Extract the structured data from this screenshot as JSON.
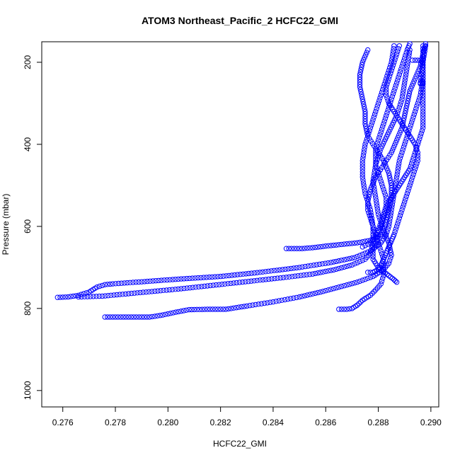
{
  "chart_data": {
    "type": "scatter",
    "title": "ATOM3 Northeast_Pacific_2 HCFC22_GMI",
    "xlabel": "HCFC22_GMI",
    "ylabel": "Pressure (mbar)",
    "xlim": [
      0.2752,
      0.2903
    ],
    "ylim": [
      1040,
      150
    ],
    "y_reversed": true,
    "x_ticks": [
      "0.276",
      "0.278",
      "0.280",
      "0.282",
      "0.284",
      "0.286",
      "0.288",
      "0.290"
    ],
    "y_ticks": [
      "200",
      "400",
      "600",
      "800",
      "1000"
    ],
    "x_tick_values": [
      0.276,
      0.278,
      0.28,
      0.282,
      0.284,
      0.286,
      0.288,
      0.29
    ],
    "y_tick_values": [
      200,
      400,
      600,
      800,
      1000
    ],
    "grid": false,
    "marker": "open-circle",
    "color": "#0000ff",
    "series": [
      {
        "values": [
          [
            0.2758,
            773
          ],
          [
            0.2762,
            772
          ],
          [
            0.2766,
            768
          ],
          [
            0.277,
            760
          ],
          [
            0.2773,
            748
          ],
          [
            0.2776,
            742
          ],
          [
            0.2779,
            740
          ],
          [
            0.279,
            735
          ],
          [
            0.2805,
            728
          ],
          [
            0.282,
            722
          ],
          [
            0.2835,
            712
          ],
          [
            0.285,
            700
          ],
          [
            0.2862,
            688
          ],
          [
            0.2871,
            676
          ],
          [
            0.2877,
            660
          ],
          [
            0.2881,
            640
          ],
          [
            0.2883,
            620
          ],
          [
            0.2884,
            600
          ],
          [
            0.2885,
            560
          ],
          [
            0.2886,
            520
          ],
          [
            0.2887,
            480
          ],
          [
            0.2888,
            440
          ],
          [
            0.289,
            400
          ],
          [
            0.2892,
            360
          ],
          [
            0.2894,
            320
          ],
          [
            0.2896,
            280
          ],
          [
            0.2897,
            240
          ],
          [
            0.2897,
            200
          ],
          [
            0.2898,
            160
          ]
        ]
      },
      {
        "values": [
          [
            0.2776,
            821
          ],
          [
            0.278,
            821
          ],
          [
            0.2785,
            821
          ],
          [
            0.279,
            821
          ],
          [
            0.2793,
            821
          ],
          [
            0.2798,
            816
          ],
          [
            0.2803,
            809
          ],
          [
            0.2808,
            803
          ],
          [
            0.2815,
            802
          ],
          [
            0.2822,
            802
          ],
          [
            0.283,
            794
          ],
          [
            0.284,
            784
          ],
          [
            0.285,
            772
          ],
          [
            0.2858,
            760
          ],
          [
            0.2865,
            748
          ],
          [
            0.2872,
            736
          ],
          [
            0.2878,
            722
          ],
          [
            0.2882,
            705
          ],
          [
            0.2884,
            690
          ],
          [
            0.2885,
            670
          ],
          [
            0.2884,
            640
          ],
          [
            0.2882,
            610
          ],
          [
            0.288,
            570
          ],
          [
            0.2879,
            530
          ],
          [
            0.2878,
            490
          ],
          [
            0.2879,
            450
          ],
          [
            0.2881,
            410
          ],
          [
            0.2884,
            370
          ],
          [
            0.2887,
            330
          ],
          [
            0.2889,
            290
          ],
          [
            0.289,
            250
          ],
          [
            0.2891,
            210
          ],
          [
            0.2892,
            170
          ]
        ]
      },
      {
        "values": [
          [
            0.2766,
            772
          ],
          [
            0.2775,
            770
          ],
          [
            0.2785,
            764
          ],
          [
            0.2795,
            758
          ],
          [
            0.2805,
            752
          ],
          [
            0.2815,
            745
          ],
          [
            0.2825,
            738
          ],
          [
            0.2835,
            731
          ],
          [
            0.2845,
            724
          ],
          [
            0.2855,
            716
          ],
          [
            0.2863,
            706
          ],
          [
            0.287,
            694
          ],
          [
            0.2875,
            680
          ],
          [
            0.2877,
            665
          ],
          [
            0.2878,
            640
          ],
          [
            0.2878,
            600
          ],
          [
            0.2877,
            560
          ],
          [
            0.2875,
            520
          ],
          [
            0.2874,
            480
          ],
          [
            0.2874,
            440
          ],
          [
            0.2875,
            400
          ],
          [
            0.2877,
            360
          ],
          [
            0.2879,
            320
          ],
          [
            0.2881,
            280
          ],
          [
            0.2883,
            240
          ],
          [
            0.2885,
            200
          ],
          [
            0.2886,
            160
          ]
        ]
      },
      {
        "values": [
          [
            0.2845,
            654
          ],
          [
            0.2848,
            654
          ],
          [
            0.2851,
            654
          ],
          [
            0.2855,
            652
          ],
          [
            0.286,
            648
          ],
          [
            0.2866,
            644
          ],
          [
            0.2872,
            640
          ],
          [
            0.2877,
            634
          ],
          [
            0.288,
            625
          ],
          [
            0.2882,
            610
          ],
          [
            0.2883,
            590
          ],
          [
            0.2884,
            560
          ],
          [
            0.2885,
            530
          ],
          [
            0.2885,
            500
          ],
          [
            0.2884,
            470
          ],
          [
            0.2882,
            440
          ],
          [
            0.2879,
            410
          ],
          [
            0.2876,
            380
          ],
          [
            0.2875,
            350
          ],
          [
            0.2875,
            320
          ],
          [
            0.2874,
            290
          ],
          [
            0.2873,
            260
          ],
          [
            0.2873,
            230
          ],
          [
            0.2874,
            200
          ],
          [
            0.2876,
            170
          ]
        ]
      },
      {
        "values": [
          [
            0.2865,
            802
          ],
          [
            0.2868,
            802
          ],
          [
            0.287,
            800
          ],
          [
            0.2872,
            792
          ],
          [
            0.2874,
            780
          ],
          [
            0.2877,
            768
          ],
          [
            0.2879,
            755
          ],
          [
            0.2881,
            740
          ],
          [
            0.2882,
            720
          ],
          [
            0.2882,
            700
          ],
          [
            0.2882,
            680
          ],
          [
            0.2881,
            660
          ],
          [
            0.288,
            640
          ],
          [
            0.2879,
            620
          ],
          [
            0.2878,
            600
          ],
          [
            0.2877,
            580
          ],
          [
            0.2876,
            560
          ],
          [
            0.2876,
            540
          ],
          [
            0.2877,
            510
          ],
          [
            0.2879,
            480
          ],
          [
            0.2882,
            450
          ],
          [
            0.2885,
            420
          ],
          [
            0.2887,
            390
          ],
          [
            0.2889,
            360
          ],
          [
            0.289,
            330
          ],
          [
            0.2891,
            300
          ],
          [
            0.2892,
            270
          ],
          [
            0.2894,
            240
          ],
          [
            0.2896,
            210
          ],
          [
            0.2897,
            180
          ],
          [
            0.2898,
            155
          ]
        ]
      },
      {
        "values": [
          [
            0.2876,
            712
          ],
          [
            0.2878,
            712
          ],
          [
            0.288,
            705
          ],
          [
            0.2881,
            695
          ],
          [
            0.2882,
            680
          ],
          [
            0.2883,
            665
          ],
          [
            0.2884,
            650
          ],
          [
            0.2885,
            635
          ],
          [
            0.2886,
            620
          ],
          [
            0.2887,
            600
          ],
          [
            0.2888,
            580
          ],
          [
            0.2889,
            560
          ],
          [
            0.289,
            540
          ],
          [
            0.2891,
            520
          ],
          [
            0.2892,
            500
          ],
          [
            0.2893,
            480
          ],
          [
            0.2894,
            460
          ],
          [
            0.2895,
            440
          ],
          [
            0.2895,
            420
          ],
          [
            0.2894,
            400
          ],
          [
            0.2892,
            380
          ],
          [
            0.289,
            360
          ],
          [
            0.2888,
            340
          ],
          [
            0.2886,
            320
          ],
          [
            0.2884,
            300
          ],
          [
            0.2883,
            280
          ],
          [
            0.2883,
            260
          ],
          [
            0.2884,
            240
          ],
          [
            0.2885,
            220
          ],
          [
            0.2886,
            200
          ],
          [
            0.2887,
            180
          ],
          [
            0.2888,
            160
          ]
        ]
      },
      {
        "values": [
          [
            0.2887,
            736
          ],
          [
            0.2886,
            730
          ],
          [
            0.2884,
            720
          ],
          [
            0.2882,
            710
          ],
          [
            0.288,
            700
          ],
          [
            0.2879,
            690
          ],
          [
            0.2878,
            680
          ],
          [
            0.2878,
            660
          ],
          [
            0.2879,
            640
          ],
          [
            0.288,
            620
          ],
          [
            0.2881,
            600
          ],
          [
            0.2882,
            580
          ],
          [
            0.2883,
            560
          ],
          [
            0.2884,
            540
          ],
          [
            0.2886,
            520
          ],
          [
            0.2888,
            500
          ],
          [
            0.289,
            480
          ],
          [
            0.2892,
            460
          ],
          [
            0.2893,
            440
          ],
          [
            0.2894,
            420
          ],
          [
            0.2895,
            400
          ],
          [
            0.2896,
            380
          ],
          [
            0.2897,
            360
          ],
          [
            0.2897,
            340
          ],
          [
            0.2897,
            320
          ],
          [
            0.2897,
            300
          ],
          [
            0.2897,
            280
          ],
          [
            0.2897,
            260
          ],
          [
            0.2897,
            240
          ],
          [
            0.2897,
            220
          ],
          [
            0.2897,
            200
          ],
          [
            0.2897,
            180
          ],
          [
            0.2897,
            160
          ]
        ]
      },
      {
        "values": [
          [
            0.2874,
            650
          ],
          [
            0.2877,
            640
          ],
          [
            0.2879,
            625
          ],
          [
            0.288,
            610
          ],
          [
            0.2881,
            590
          ],
          [
            0.2882,
            570
          ],
          [
            0.2883,
            550
          ],
          [
            0.2883,
            530
          ],
          [
            0.2882,
            510
          ],
          [
            0.2881,
            490
          ],
          [
            0.288,
            470
          ],
          [
            0.2879,
            450
          ],
          [
            0.2879,
            430
          ],
          [
            0.2879,
            410
          ],
          [
            0.288,
            390
          ],
          [
            0.2881,
            370
          ],
          [
            0.2882,
            350
          ],
          [
            0.2883,
            330
          ],
          [
            0.2884,
            310
          ],
          [
            0.2885,
            290
          ],
          [
            0.2886,
            270
          ],
          [
            0.2887,
            250
          ],
          [
            0.2888,
            230
          ],
          [
            0.2889,
            210
          ],
          [
            0.289,
            190
          ],
          [
            0.2891,
            170
          ],
          [
            0.2892,
            155
          ]
        ]
      },
      {
        "values": [
          [
            0.2893,
            195
          ],
          [
            0.2895,
            195
          ],
          [
            0.2896,
            195
          ],
          [
            0.2897,
            195
          ],
          [
            0.2896,
            252
          ],
          [
            0.2897,
            252
          ],
          [
            0.2896,
            250
          ],
          [
            0.2897,
            248
          ]
        ]
      }
    ]
  }
}
